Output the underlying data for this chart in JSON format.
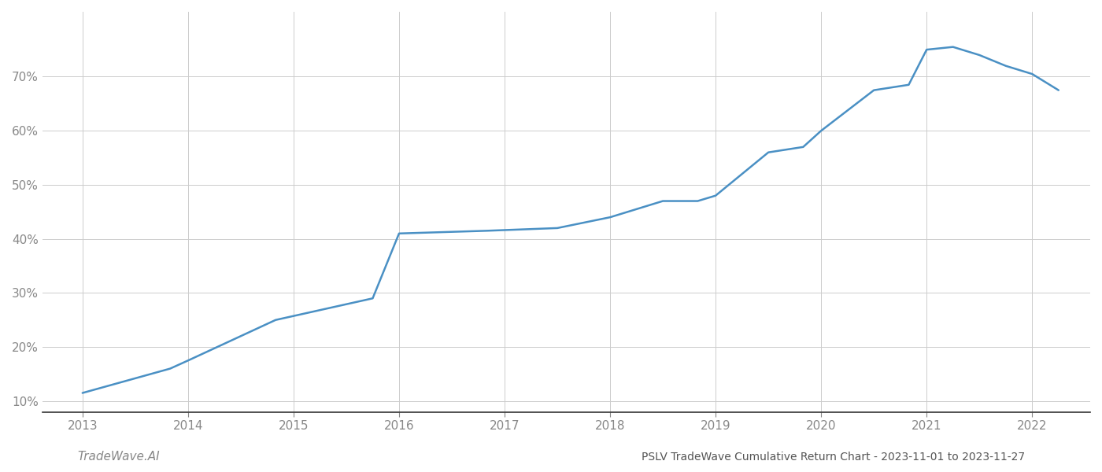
{
  "title": "PSLV TradeWave Cumulative Return Chart - 2023-11-01 to 2023-11-27",
  "watermark": "TradeWave.AI",
  "x_years": [
    2013,
    2014,
    2015,
    2016,
    2017,
    2018,
    2019,
    2020,
    2021,
    2022
  ],
  "x_key": [
    2013.0,
    2013.83,
    2014.0,
    2014.83,
    2015.75,
    2016.0,
    2016.83,
    2017.5,
    2018.0,
    2018.5,
    2018.83,
    2019.0,
    2019.5,
    2019.83,
    2020.0,
    2020.5,
    2020.83,
    2021.0,
    2021.25,
    2021.5,
    2021.75,
    2022.0,
    2022.25
  ],
  "y_key": [
    11.5,
    16.0,
    17.5,
    25.0,
    29.0,
    41.0,
    41.5,
    42.0,
    44.0,
    47.0,
    47.0,
    48.0,
    56.0,
    57.0,
    60.0,
    67.5,
    68.5,
    75.0,
    75.5,
    74.0,
    72.0,
    70.5,
    67.5
  ],
  "line_color": "#4a90c4",
  "line_width": 1.8,
  "background_color": "#ffffff",
  "grid_color": "#cccccc",
  "ytick_labels": [
    "10%",
    "20%",
    "30%",
    "40%",
    "50%",
    "60%",
    "70%"
  ],
  "ytick_values": [
    10,
    20,
    30,
    40,
    50,
    60,
    70
  ],
  "ylim": [
    8,
    82
  ],
  "xlim": [
    2012.62,
    2022.55
  ],
  "title_fontsize": 10,
  "watermark_fontsize": 11,
  "axis_label_color": "#888888",
  "title_color": "#555555"
}
